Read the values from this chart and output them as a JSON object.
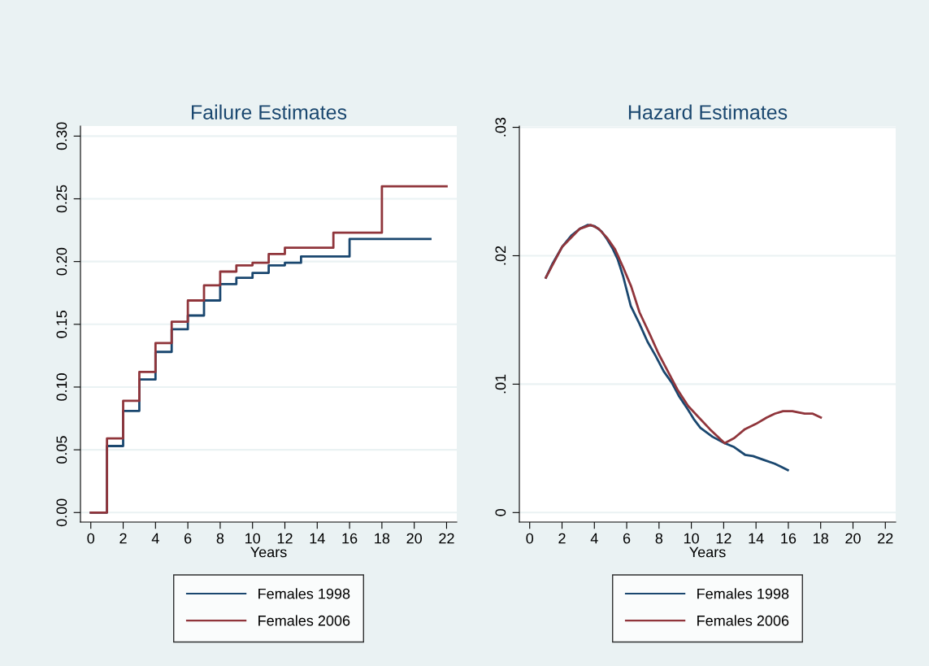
{
  "chart_data": [
    {
      "type": "step",
      "title": "Failure Estimates",
      "xlabel": "Years",
      "grid": "y",
      "legend": "bottom",
      "xlim": [
        -0.64,
        22.63
      ],
      "xticks": [
        0,
        2,
        4,
        6,
        8,
        10,
        12,
        14,
        16,
        18,
        20,
        22
      ],
      "ylim": [
        -0.0076,
        0.308
      ],
      "yticks": [
        {
          "value": 0,
          "label": "0.00"
        },
        {
          "value": 0.05,
          "label": "0.05"
        },
        {
          "value": 0.1,
          "label": "0.10"
        },
        {
          "value": 0.15,
          "label": "0.15"
        },
        {
          "value": 0.2,
          "label": "0.20"
        },
        {
          "value": 0.25,
          "label": "0.25"
        },
        {
          "value": 0.3,
          "label": "0.30"
        }
      ],
      "series": [
        {
          "name": "Females 1998",
          "color": "#1a476f",
          "x": [
            0,
            1,
            2,
            3,
            4,
            5,
            6,
            7,
            8,
            9,
            10,
            11,
            12,
            13,
            16,
            21
          ],
          "values": [
            0,
            0.053,
            0.081,
            0.106,
            0.128,
            0.146,
            0.157,
            0.169,
            0.182,
            0.187,
            0.191,
            0.197,
            0.199,
            0.204,
            0.218,
            0.218
          ]
        },
        {
          "name": "Females 2006",
          "color": "#90353b",
          "x": [
            0,
            1,
            2,
            3,
            4,
            5,
            6,
            7,
            8,
            9,
            10,
            11,
            12,
            15,
            18,
            22
          ],
          "values": [
            0,
            0.059,
            0.089,
            0.112,
            0.135,
            0.152,
            0.169,
            0.181,
            0.192,
            0.197,
            0.199,
            0.206,
            0.211,
            0.223,
            0.26,
            0.26
          ]
        }
      ]
    },
    {
      "type": "line",
      "title": "Hazard Estimates",
      "xlabel": "Years",
      "grid": "y",
      "legend": "bottom",
      "xlim": [
        -0.64,
        22.64
      ],
      "xticks": [
        0,
        2,
        4,
        6,
        8,
        10,
        12,
        14,
        16,
        18,
        20,
        22
      ],
      "ylim": [
        -0.00074,
        0.0301
      ],
      "yticks": [
        0,
        {
          "value": 0.01,
          "label": ".01"
        },
        {
          "value": 0.02,
          "label": ".02"
        },
        {
          "value": 0.03,
          "label": ".03"
        }
      ],
      "series": [
        {
          "name": "Females 1998",
          "color": "#1a476f",
          "x": [
            1.0,
            1.42,
            2.01,
            2.6,
            3.1,
            3.6,
            4.02,
            4.44,
            4.78,
            5.11,
            5.45,
            5.78,
            6.25,
            6.79,
            7.29,
            7.79,
            8.29,
            8.8,
            9.22,
            9.8,
            10.14,
            10.56,
            11.31,
            12.06,
            12.65,
            13.32,
            13.82,
            14.49,
            15.16,
            15.5,
            15.97
          ],
          "values": [
            0.0183,
            0.0194,
            0.0207,
            0.0216,
            0.0221,
            0.0224,
            0.0223,
            0.0219,
            0.0213,
            0.0206,
            0.0197,
            0.0184,
            0.0161,
            0.0147,
            0.0133,
            0.0122,
            0.011,
            0.0101,
            0.0091,
            0.008,
            0.0073,
            0.0066,
            0.0059,
            0.0054,
            0.0051,
            0.0045,
            0.0044,
            0.0041,
            0.0038,
            0.0036,
            0.0033
          ]
        },
        {
          "name": "Females 2006",
          "color": "#90353b",
          "x": [
            1.0,
            2.01,
            3.1,
            3.77,
            4.27,
            4.78,
            5.28,
            5.78,
            6.28,
            6.79,
            7.46,
            7.96,
            8.46,
            9.13,
            9.8,
            10.47,
            11.14,
            12.06,
            12.65,
            13.32,
            13.99,
            14.66,
            15.16,
            15.67,
            16.25,
            17.01,
            17.51,
            18.01
          ],
          "values": [
            0.0183,
            0.0207,
            0.0221,
            0.0224,
            0.0221,
            0.0214,
            0.0205,
            0.0191,
            0.0176,
            0.0156,
            0.0138,
            0.0124,
            0.0112,
            0.0096,
            0.0083,
            0.0074,
            0.0065,
            0.0054,
            0.0058,
            0.0065,
            0.0069,
            0.0074,
            0.0077,
            0.0079,
            0.0079,
            0.0077,
            0.0077,
            0.0074
          ]
        }
      ]
    }
  ]
}
